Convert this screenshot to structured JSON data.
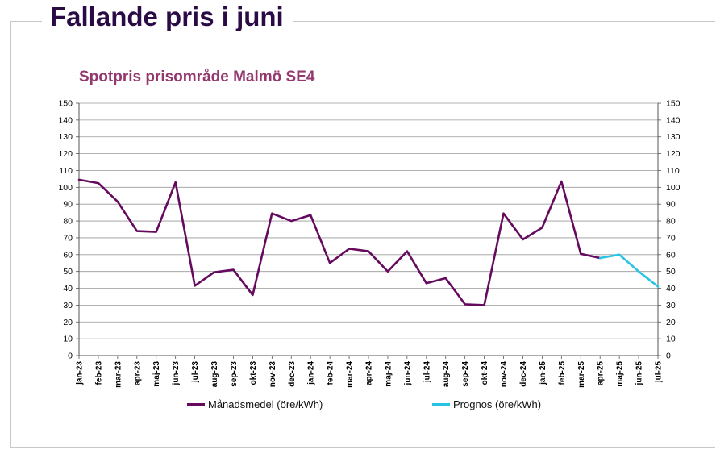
{
  "heading": "Fallande pris i juni",
  "colors": {
    "heading": "#2b0b46",
    "title": "#93386e",
    "monthly": "#650a5f",
    "forecast": "#27c4e3"
  },
  "chart_data": {
    "type": "line",
    "title": "Spotpris prisområde Malmö SE4",
    "xlabel": "",
    "ylabel": "",
    "ylim": [
      0,
      150
    ],
    "y_ticks": [
      0,
      10,
      20,
      30,
      40,
      50,
      60,
      70,
      80,
      90,
      100,
      110,
      120,
      130,
      140,
      150
    ],
    "grid": true,
    "secondary_y_axis": true,
    "legend_position": "bottom",
    "categories": [
      "jan-23",
      "feb-23",
      "mar-23",
      "apr-23",
      "maj-23",
      "jun-23",
      "jul-23",
      "aug-23",
      "sep-23",
      "okt-23",
      "nov-23",
      "dec-23",
      "jan-24",
      "feb-24",
      "mar-24",
      "apr-24",
      "maj-24",
      "jun-24",
      "jul-24",
      "aug-24",
      "sep-24",
      "okt-24",
      "nov-24",
      "dec-24",
      "jan-25",
      "feb-25",
      "mar-25",
      "apr-25",
      "maj-25",
      "jun-25",
      "jul-25"
    ],
    "series": [
      {
        "name": "Månadsmedel (öre/kWh)",
        "color": "#650a5f",
        "values": [
          104.5,
          102.5,
          91.5,
          74,
          73.5,
          103,
          41.5,
          49.5,
          51,
          36,
          84.5,
          80,
          83.5,
          55,
          63.5,
          62,
          50,
          62,
          43,
          46,
          30.5,
          30,
          84.5,
          69,
          76,
          103.5,
          60.5,
          58,
          null,
          null,
          null
        ]
      },
      {
        "name": "Prognos (öre/kWh)",
        "color": "#27c4e3",
        "values": [
          null,
          null,
          null,
          null,
          null,
          null,
          null,
          null,
          null,
          null,
          null,
          null,
          null,
          null,
          null,
          null,
          null,
          null,
          null,
          null,
          null,
          null,
          null,
          null,
          null,
          null,
          null,
          58,
          60,
          50,
          41
        ]
      }
    ]
  }
}
